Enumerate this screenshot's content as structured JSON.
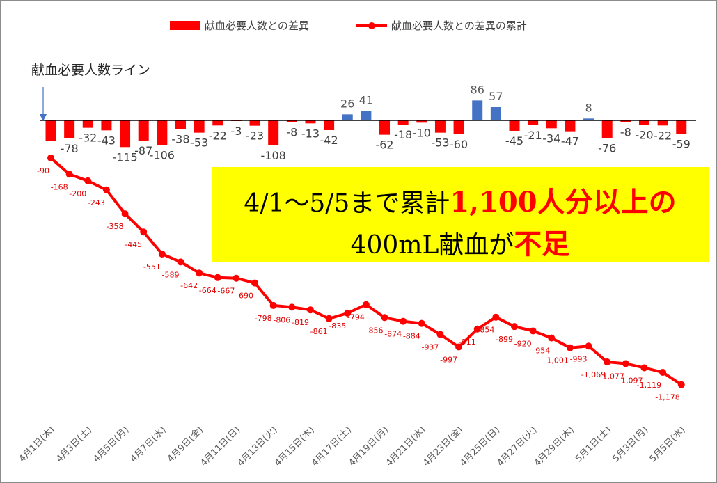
{
  "colors": {
    "diff_bar_negative": "#ff0000",
    "diff_bar_positive": "#4472c4",
    "cumulative_line": "#ff0000",
    "callout_background": "#ffff00"
  },
  "legend": {
    "diff": "献血必要人数との差異",
    "cumulative": "献血必要人数との差異の累計"
  },
  "reference_label": "献血必要人数ライン",
  "callout": {
    "line1_prefix": "4/1～5/5まで累計",
    "line1_emphasis": "1,100人分以上の",
    "line2_prefix": "400mL献血が",
    "line2_emphasis": "不足"
  },
  "chart_data": {
    "type": "bar+line",
    "x_tick_labels": [
      "4月1日(木)",
      "4月3日(土)",
      "4月5日(月)",
      "4月7日(水)",
      "4月9日(金)",
      "4月11日(日)",
      "4月13日(火)",
      "4月15日(木)",
      "4月17日(土)",
      "4月19日(月)",
      "4月21日(水)",
      "4月23日(金)",
      "4月25日(日)",
      "4月27日(火)",
      "4月29日(木)",
      "5月1日(土)",
      "5月3日(月)",
      "5月5日(水)"
    ],
    "series": [
      {
        "name": "献血必要人数との差異",
        "kind": "bar",
        "values": [
          -90,
          -78,
          -32,
          -43,
          -115,
          -87,
          -106,
          -38,
          -53,
          -22,
          -3,
          -23,
          -108,
          -8,
          -13,
          -42,
          26,
          41,
          -62,
          -18,
          -10,
          -53,
          -60,
          86,
          57,
          -45,
          -21,
          -34,
          -47,
          8,
          -76,
          -8,
          -20,
          -22,
          -59
        ],
        "labels": [
          "",
          "-78",
          "-32",
          "-43",
          "-115",
          "-87",
          "-106",
          "-38",
          "-53",
          "-22",
          "-3",
          "-23",
          "-108",
          "-8",
          "-13",
          "-42",
          "26",
          "41",
          "-62",
          "-18",
          "-10",
          "-53",
          "-60",
          "86",
          "57",
          "-45",
          "-21",
          "-34",
          "-47",
          "8",
          "-76",
          "-8",
          "-20",
          "-22",
          "-59"
        ]
      },
      {
        "name": "献血必要人数との差異の累計",
        "kind": "line",
        "values": [
          -90,
          -168,
          -200,
          -243,
          -358,
          -445,
          -551,
          -589,
          -642,
          -664,
          -667,
          -690,
          -798,
          -806,
          -819,
          -861,
          -835,
          -794,
          -856,
          -874,
          -884,
          -937,
          -997,
          -911,
          -854,
          -899,
          -920,
          -954,
          -1001,
          -993,
          -1069,
          -1077,
          -1097,
          -1119,
          -1178
        ],
        "labels": [
          "-90",
          "-168",
          "-200",
          "-243",
          "-358",
          "-445",
          "-551",
          "-589",
          "-642",
          "-664",
          "-667",
          "-690",
          "-798",
          "-806",
          "-819",
          "-861",
          "-835",
          "-794",
          "-856",
          "-874",
          "-884",
          "-937",
          "-997",
          "-911",
          "-854",
          "-899",
          "-920",
          "-954",
          "-1,001",
          "-993",
          "-1,069",
          "-1,077",
          "-1,097",
          "-1,119",
          "-1,178"
        ]
      }
    ],
    "reference_line": 0,
    "grid": false,
    "legend_position": "top"
  }
}
